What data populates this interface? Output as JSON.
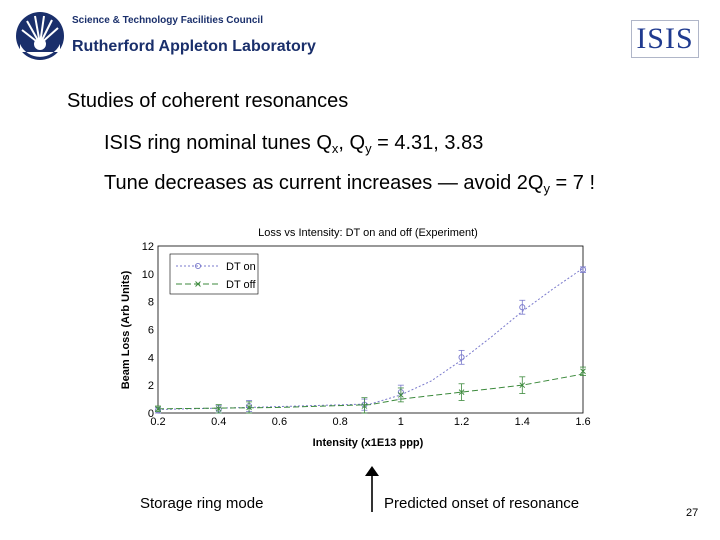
{
  "header": {
    "org_line1": "Science & Technology Facilities Council",
    "org_line2": "Rutherford Appleton Laboratory",
    "isis_logo": "ISIS",
    "org_logo_icon": "sunburst-icon"
  },
  "slide": {
    "heading": "Studies of coherent resonances",
    "line1_a": "ISIS ring nominal tunes Q",
    "line1_sub1": "x",
    "line1_b": ", Q",
    "line1_sub2": "y",
    "line1_c": "  =  4.31, 3.83",
    "line2_a": "Tune decreases as current increases — avoid 2Q",
    "line2_sub": "y",
    "line2_b": " = 7 !",
    "caption_left": "Storage ring mode",
    "caption_right": "Predicted onset of resonance",
    "page_number": "27"
  },
  "chart_data": {
    "type": "line",
    "title": "Loss vs Intensity: DT on and off (Experiment)",
    "xlabel": "Intensity (x1E13 ppp)",
    "ylabel": "Beam Loss (Arb Units)",
    "xlim": [
      0.2,
      1.6
    ],
    "ylim": [
      0,
      12
    ],
    "xticks": [
      "0.2",
      "0.4",
      "0.6",
      "0.8",
      "1",
      "1.2",
      "1.4",
      "1.6"
    ],
    "yticks": [
      "0",
      "2",
      "4",
      "6",
      "8",
      "10",
      "12"
    ],
    "grid": true,
    "legend_position": "top-left",
    "series": [
      {
        "name": "DT on",
        "color": "#7a7acc",
        "marker": "circle",
        "points": [
          [
            0.2,
            0.2
          ],
          [
            0.4,
            0.25
          ],
          [
            0.5,
            0.5
          ],
          [
            0.88,
            0.6
          ],
          [
            1.0,
            1.5
          ],
          [
            1.2,
            4.0
          ],
          [
            1.4,
            7.6
          ],
          [
            1.6,
            10.3
          ]
        ],
        "errors": [
          0.2,
          0.3,
          0.4,
          0.4,
          0.5,
          0.5,
          0.5,
          0.2
        ],
        "fit": [
          [
            0.2,
            0.25
          ],
          [
            0.5,
            0.4
          ],
          [
            0.9,
            0.65
          ],
          [
            1.0,
            1.3
          ],
          [
            1.1,
            2.3
          ],
          [
            1.2,
            3.8
          ],
          [
            1.3,
            5.5
          ],
          [
            1.4,
            7.3
          ],
          [
            1.5,
            8.9
          ],
          [
            1.6,
            10.4
          ]
        ]
      },
      {
        "name": "DT off",
        "color": "#3c8a3c",
        "marker": "x",
        "points": [
          [
            0.2,
            0.3
          ],
          [
            0.4,
            0.3
          ],
          [
            0.5,
            0.4
          ],
          [
            0.88,
            0.5
          ],
          [
            1.0,
            1.3
          ],
          [
            1.2,
            1.5
          ],
          [
            1.4,
            2.0
          ],
          [
            1.6,
            3.0
          ]
        ],
        "errors": [
          0.2,
          0.3,
          0.4,
          0.6,
          0.5,
          0.6,
          0.6,
          0.3
        ],
        "fit": [
          [
            0.2,
            0.3
          ],
          [
            0.6,
            0.4
          ],
          [
            0.9,
            0.6
          ],
          [
            1.0,
            1.0
          ],
          [
            1.2,
            1.5
          ],
          [
            1.4,
            2.0
          ],
          [
            1.6,
            2.8
          ]
        ]
      }
    ]
  }
}
